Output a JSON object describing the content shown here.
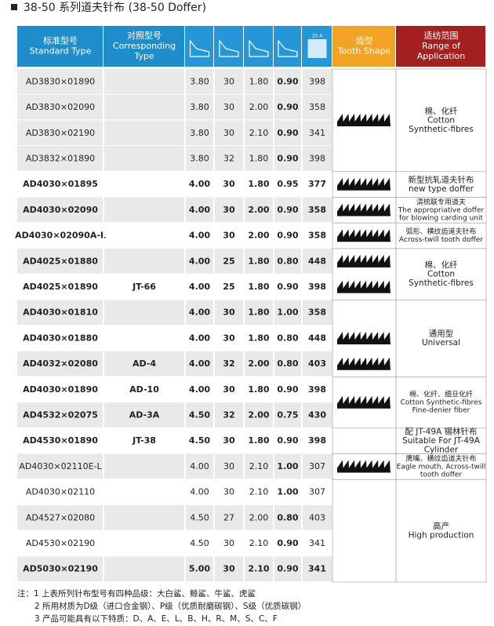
{
  "title": "38-50 系列道夫针布 (38-50 Doffer)",
  "header": {
    "standard": [
      "标准型号",
      "Standard Type"
    ],
    "corresponding": [
      "对照型号",
      "Corresponding",
      "Type"
    ],
    "icon_label": "25.4",
    "tooth": [
      "齿型",
      "Tooth Shape"
    ],
    "range": [
      "适纺范围",
      "Range of",
      "Application"
    ]
  },
  "rows": [
    {
      "standard": "AD3830×01890",
      "values": [
        "3.80",
        "30",
        "1.80",
        "0.90",
        "398"
      ]
    },
    {
      "standard": "AD3830×02090",
      "values": [
        "3.80",
        "30",
        "2.00",
        "0.90",
        "358"
      ]
    },
    {
      "standard": "AD3830×02190",
      "values": [
        "3.80",
        "30",
        "2.10",
        "0.90",
        "341"
      ]
    },
    {
      "standard": "AD3832×01890",
      "values": [
        "3.80",
        "32",
        "1.80",
        "0.90",
        "398"
      ]
    },
    {
      "standard": "AD4030×01895",
      "values": [
        "4.00",
        "30",
        "1.80",
        "0.95",
        "377"
      ]
    },
    {
      "standard": "AD4030×02090",
      "values": [
        "4.00",
        "30",
        "2.00",
        "0.90",
        "358"
      ]
    },
    {
      "standard": "AD4030×02090A-L",
      "values": [
        "4.00",
        "30",
        "2.00",
        "0.90",
        "358"
      ]
    },
    {
      "standard": "AD4025×01880",
      "values": [
        "4.00",
        "25",
        "1.80",
        "0.80",
        "448"
      ]
    },
    {
      "standard": "AD4025×01890",
      "corresponding": "JT-66",
      "values": [
        "4.00",
        "25",
        "1.80",
        "0.90",
        "398"
      ]
    },
    {
      "standard": "AD4030×01810",
      "values": [
        "4.00",
        "30",
        "1.80",
        "1.00",
        "358"
      ]
    },
    {
      "standard": "AD4030×01880",
      "values": [
        "4.00",
        "30",
        "1.80",
        "0.80",
        "448"
      ]
    },
    {
      "standard": "AD4032×02080",
      "corresponding": "AD-4",
      "values": [
        "4.00",
        "32",
        "2.00",
        "0.80",
        "403"
      ]
    },
    {
      "standard": "AD4030×01890",
      "corresponding": "AD-10",
      "values": [
        "4.00",
        "30",
        "1.80",
        "0.90",
        "398"
      ]
    },
    {
      "standard": "AD4532×02075",
      "corresponding": "AD-3A",
      "values": [
        "4.50",
        "32",
        "2.00",
        "0.75",
        "430"
      ]
    },
    {
      "standard": "AD4530×01890",
      "corresponding": "JT-38",
      "values": [
        "4.50",
        "30",
        "1.80",
        "0.90",
        "398"
      ]
    },
    {
      "standard": "AD4030×02110E-L",
      "values": [
        "4.00",
        "30",
        "2.10",
        "1.00",
        "307"
      ]
    },
    {
      "standard": "AD4030×02110",
      "values": [
        "4.00",
        "30",
        "2.10",
        "1.00",
        "307"
      ]
    },
    {
      "standard": "AD4527×02080",
      "values": [
        "4.50",
        "27",
        "2.00",
        "0.80",
        "403"
      ]
    },
    {
      "standard": "AD4530×02190",
      "values": [
        "4.50",
        "30",
        "2.10",
        "0.90",
        "341"
      ]
    },
    {
      "standard": "AD5030×02190",
      "values": [
        "5.00",
        "30",
        "2.10",
        "0.90",
        "341"
      ]
    }
  ],
  "applications": [
    [
      "棉、化纤",
      "Cotton",
      "Synthetic-fibres"
    ],
    [
      "新型抗轧道夫针布",
      "new type doffer"
    ],
    [
      "清梳联专用道夫",
      "The appropriative doffer",
      "for blowing carding unit"
    ],
    [
      "弧形、横纹齿道夫针布",
      "Across-twill tooth doffer"
    ],
    [
      "棉、化纤",
      "Cotton",
      "Synthetic-fibres"
    ],
    [
      "通用型",
      "Universal"
    ],
    [
      "棉、化纤、细旦化纤",
      "Cotton Synthetic-fibres",
      "Fine-denier fiber"
    ],
    [
      "配 JT-49A 锡林针布",
      "Suitable For JT-49A",
      "Cylinder"
    ],
    [
      "鹰嘴、横纹齿道夫针布",
      "Eagle mouth, Across-twill",
      "tooth doffer"
    ],
    [
      "高产",
      "High production"
    ]
  ],
  "notes": [
    "注：1 上表所列针布型号有四种品级：大白鲨、鲸鲨、牛鲨、虎鲨",
    "2 所用材质为D级（进口合金钢）、P级（优质耐磨碳钢）、S级（优质碳钢）",
    "3 产品可能具有以下特质：D、A、E、L、B、H、R、M、S、C、F"
  ]
}
